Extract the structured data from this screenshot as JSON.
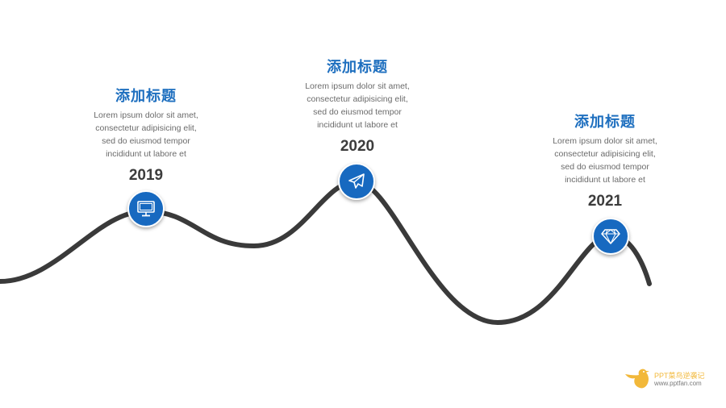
{
  "milestones": [
    {
      "title": "添加标题",
      "body": "Lorem ipsum dolor sit amet,\nconsectetur adipisicing elit,\nsed do eiusmod tempor\nincididunt ut labore et",
      "year": "2019",
      "icon": "monitor-icon"
    },
    {
      "title": "添加标题",
      "body": "Lorem ipsum dolor sit amet,\nconsectetur adipisicing elit,\nsed do eiusmod tempor\nincididunt ut labore et",
      "year": "2020",
      "icon": "paper-plane-icon"
    },
    {
      "title": "添加标题",
      "body": "Lorem ipsum dolor sit amet,\nconsectetur adipisicing elit,\nsed do eiusmod tempor\nincididunt ut labore et",
      "year": "2021",
      "icon": "diamond-icon"
    }
  ],
  "brand": {
    "name": "PPT菜鸟逆袭记",
    "url": "www.pptfan.com",
    "icon": "bird-logo-icon"
  },
  "colors": {
    "accent": "#1769c0",
    "title": "#1e6fbf",
    "curve": "#3a3a3a",
    "body_text": "#6b6b6b",
    "year_text": "#3c3c3c",
    "brand": "#f2b83a"
  }
}
